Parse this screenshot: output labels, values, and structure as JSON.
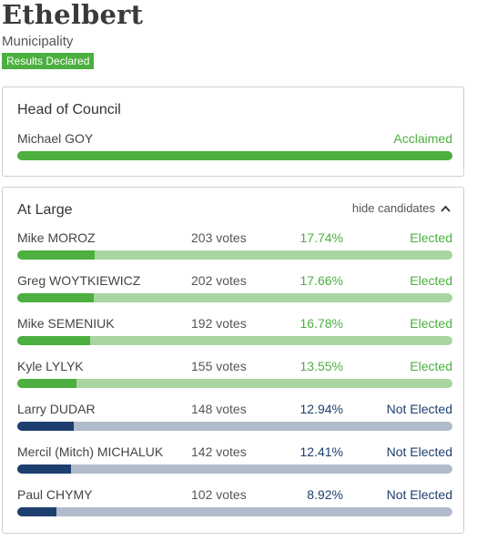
{
  "header": {
    "title": "Ethelbert",
    "subtitle": "Municipality",
    "badge": "Results Declared"
  },
  "colors": {
    "elected": "#4caf3f",
    "elected_track": "#a8d5a0",
    "not_elected": "#1d3f6e",
    "not_elected_track": "#b1bccb"
  },
  "council": {
    "title": "Head of Council",
    "candidate": {
      "name": "Michael GOY",
      "status": "Acclaimed",
      "fill_fraction": 1.0
    }
  },
  "atlarge": {
    "title": "At Large",
    "toggle_label": "hide candidates",
    "toggle_icon": "chevron-up-icon",
    "candidates": [
      {
        "name": "Mike MOROZ",
        "votes": "203 votes",
        "pct": "17.74%",
        "pct_value": 17.74,
        "status": "Elected",
        "elected": true
      },
      {
        "name": "Greg WOYTKIEWICZ",
        "votes": "202 votes",
        "pct": "17.66%",
        "pct_value": 17.66,
        "status": "Elected",
        "elected": true
      },
      {
        "name": "Mike SEMENIUK",
        "votes": "192 votes",
        "pct": "16.78%",
        "pct_value": 16.78,
        "status": "Elected",
        "elected": true
      },
      {
        "name": "Kyle LYLYK",
        "votes": "155 votes",
        "pct": "13.55%",
        "pct_value": 13.55,
        "status": "Elected",
        "elected": true
      },
      {
        "name": "Larry DUDAR",
        "votes": "148 votes",
        "pct": "12.94%",
        "pct_value": 12.94,
        "status": "Not Elected",
        "elected": false
      },
      {
        "name": "Mercil (Mitch) MICHALUK",
        "votes": "142 votes",
        "pct": "12.41%",
        "pct_value": 12.41,
        "status": "Not Elected",
        "elected": false
      },
      {
        "name": "Paul CHYMY",
        "votes": "102 votes",
        "pct": "8.92%",
        "pct_value": 8.92,
        "status": "Not Elected",
        "elected": false
      }
    ]
  }
}
